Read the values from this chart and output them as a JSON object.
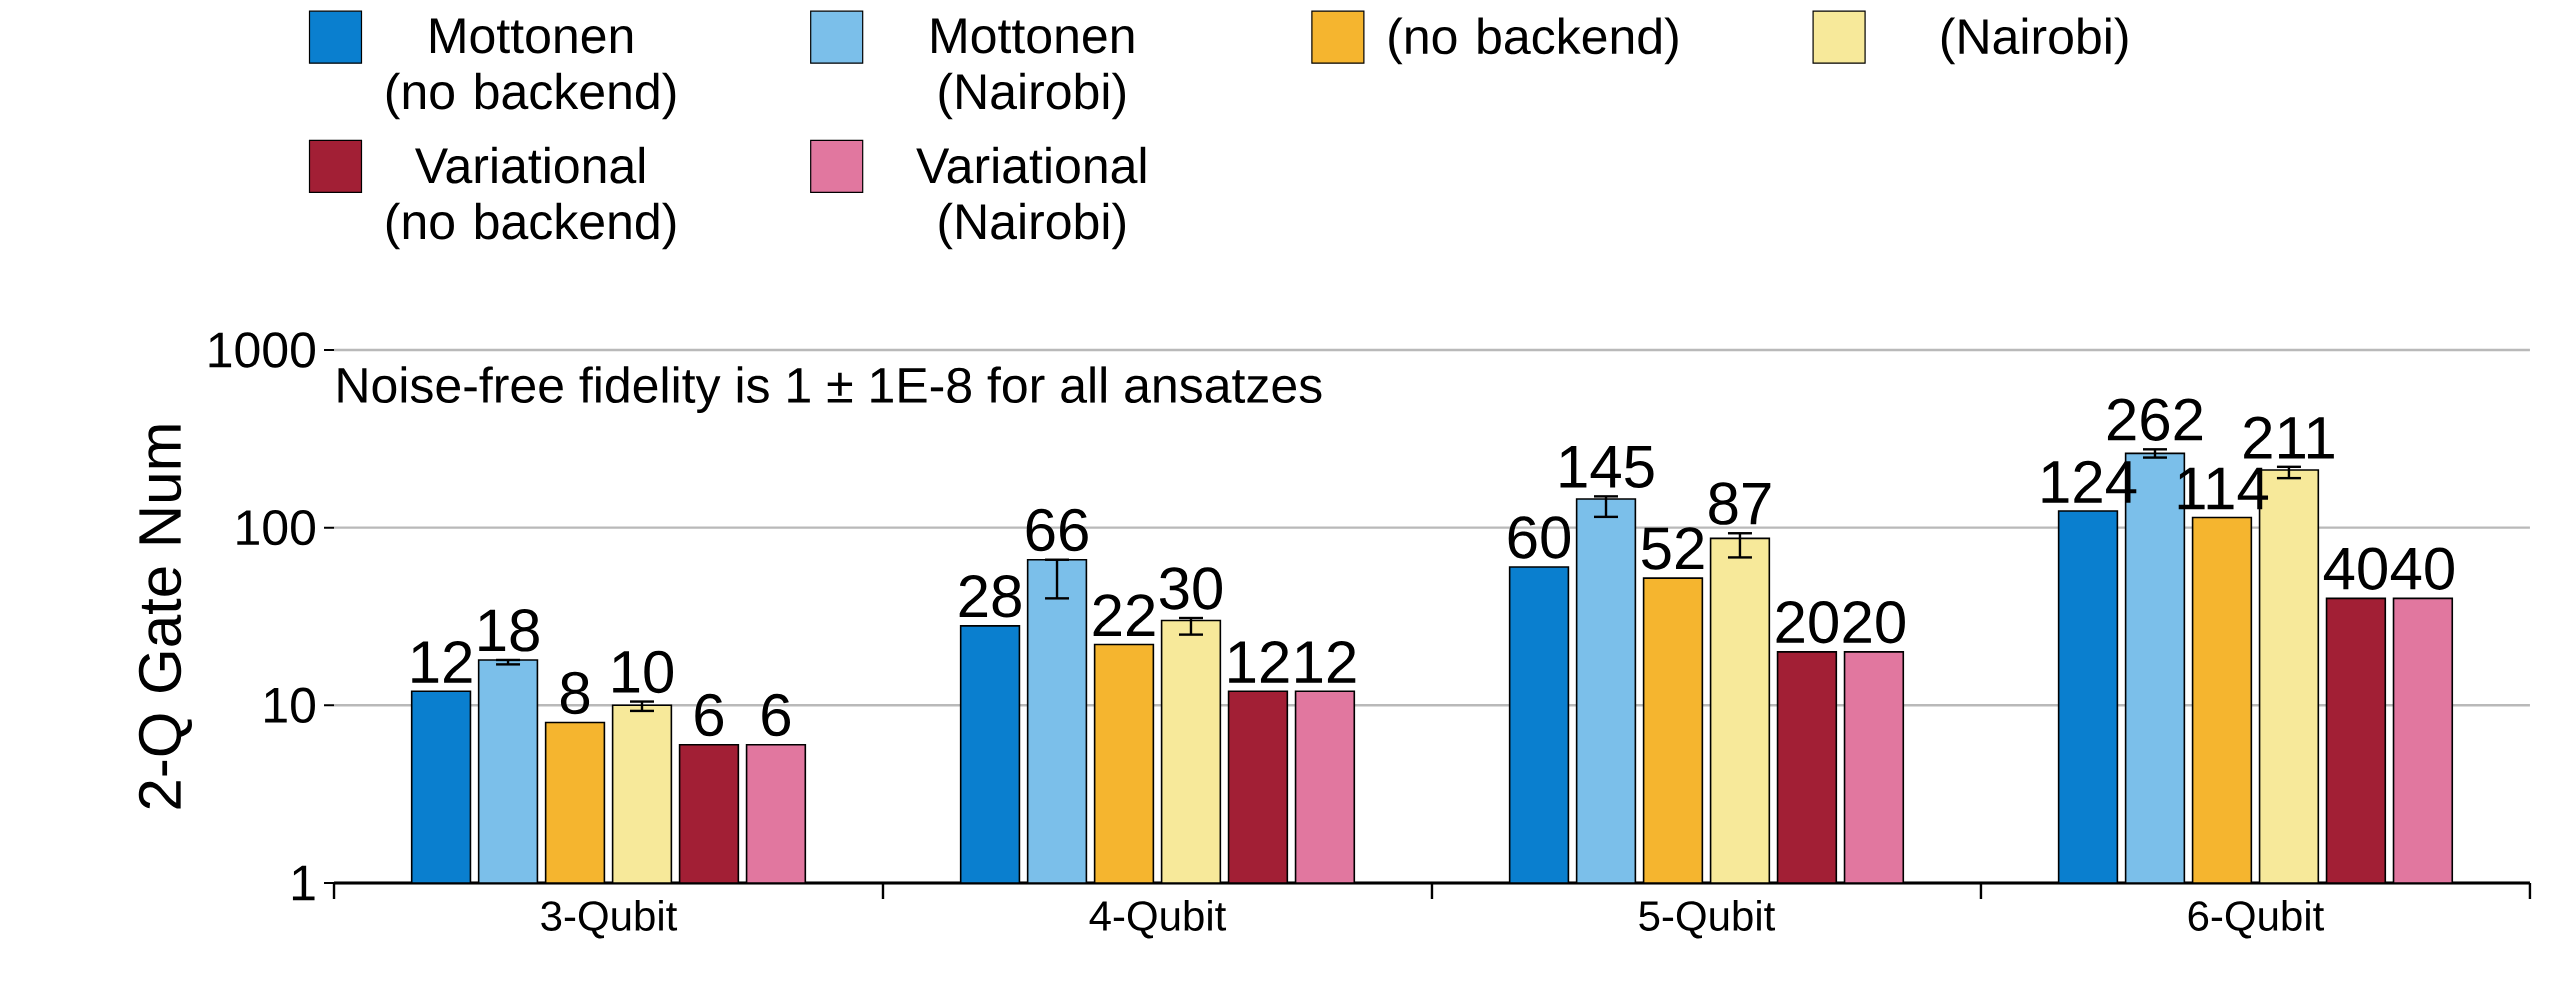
{
  "chart_data": {
    "type": "bar",
    "ylabel": "2-Q Gate Num",
    "categories": [
      "3-Qubit",
      "4-Qubit",
      "5-Qubit",
      "6-Qubit"
    ],
    "series": [
      {
        "name": "Mottonen (no backend)",
        "color": "#0a7fcf",
        "values": [
          12,
          28,
          60,
          124
        ],
        "value_labels": [
          "12",
          "28",
          "60",
          "124"
        ]
      },
      {
        "name": "Mottonen (Nairobi)",
        "color": "#7bbfea",
        "values": [
          18,
          66,
          145,
          262
        ],
        "value_labels": [
          "18",
          "66",
          "145",
          "262"
        ],
        "errors": [
          [
            17,
            18
          ],
          [
            40,
            66
          ],
          [
            115,
            150
          ],
          [
            248,
            276
          ]
        ]
      },
      {
        "name": "(no backend)",
        "color": "#f5b52f",
        "values": [
          8,
          22,
          52,
          114
        ],
        "value_labels": [
          "8",
          "22",
          "52",
          "114"
        ]
      },
      {
        "name": "(Nairobi)",
        "color": "#f7e99a",
        "values": [
          10,
          30,
          87,
          211
        ],
        "value_labels": [
          "10",
          "30",
          "87",
          "211"
        ],
        "errors": [
          [
            9.3,
            10.5
          ],
          [
            25,
            31
          ],
          [
            68,
            93
          ],
          [
            190,
            220
          ]
        ]
      },
      {
        "name": "Variational (no backend)",
        "color": "#a21f35",
        "values": [
          6,
          12,
          20,
          40
        ],
        "value_labels": [
          "6",
          "12",
          "20",
          "40"
        ]
      },
      {
        "name": "Variational (Nairobi)",
        "color": "#e1779f",
        "values": [
          6,
          12,
          20,
          40
        ],
        "value_labels": [
          "6",
          "12",
          "20",
          "40"
        ]
      }
    ],
    "log": true,
    "ylim": [
      1,
      1000
    ],
    "yticks": [
      1,
      10,
      100,
      1000
    ],
    "grid": "y",
    "legend": "top",
    "annotations": [
      "Noise-free fidelity is 1 ± 1E-8 for all ansatzes"
    ]
  }
}
